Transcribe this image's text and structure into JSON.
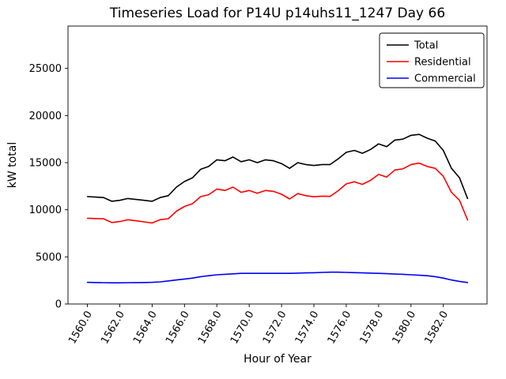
{
  "chart_data": {
    "type": "line",
    "title": "Timeseries Load for P14U p14uhs11_1247  Day 66",
    "xlabel": "Hour of Year",
    "ylabel": "kW total",
    "xlim": [
      1558.8,
      1584.7
    ],
    "ylim": [
      0,
      29500
    ],
    "grid": false,
    "legend": {
      "position": "upper right",
      "entries": [
        "Total",
        "Residential",
        "Commercial"
      ]
    },
    "xtick_values": [
      1560,
      1562,
      1564,
      1566,
      1568,
      1570,
      1572,
      1574,
      1576,
      1578,
      1580,
      1582
    ],
    "xtick_labels": [
      "1560.0",
      "1562.0",
      "1564.0",
      "1566.0",
      "1568.0",
      "1570.0",
      "1572.0",
      "1574.0",
      "1576.0",
      "1578.0",
      "1580.0",
      "1582.0"
    ],
    "ytick_values": [
      0,
      5000,
      10000,
      15000,
      20000,
      25000
    ],
    "ytick_labels": [
      "0",
      "5000",
      "10000",
      "15000",
      "20000",
      "25000"
    ],
    "x": [
      1560.0,
      1560.5,
      1561.0,
      1561.5,
      1562.0,
      1562.5,
      1563.0,
      1563.5,
      1564.0,
      1564.5,
      1565.0,
      1565.5,
      1566.0,
      1566.5,
      1567.0,
      1567.5,
      1568.0,
      1568.5,
      1569.0,
      1569.5,
      1570.0,
      1570.5,
      1571.0,
      1571.5,
      1572.0,
      1572.5,
      1573.0,
      1573.5,
      1574.0,
      1574.5,
      1575.0,
      1575.5,
      1576.0,
      1576.5,
      1577.0,
      1577.5,
      1578.0,
      1578.5,
      1579.0,
      1579.5,
      1580.0,
      1580.5,
      1581.0,
      1581.5,
      1582.0,
      1582.5,
      1583.0,
      1583.5
    ],
    "series": [
      {
        "name": "Total",
        "color": "#000000",
        "values": [
          11400,
          11350,
          11300,
          10900,
          11000,
          11200,
          11100,
          11000,
          10900,
          11300,
          11500,
          12400,
          13000,
          13400,
          14300,
          14600,
          15300,
          15200,
          15600,
          15100,
          15300,
          15000,
          15300,
          15200,
          14900,
          14400,
          15000,
          14800,
          14700,
          14800,
          14800,
          15400,
          16100,
          16300,
          16000,
          16400,
          17000,
          16700,
          17400,
          17500,
          17900,
          18000,
          17600,
          17300,
          16300,
          14400,
          13400,
          11200
        ]
      },
      {
        "name": "Residential",
        "color": "#ff0000",
        "values": [
          9100,
          9070,
          9040,
          8650,
          8750,
          8940,
          8830,
          8720,
          8600,
          8950,
          9050,
          9850,
          10350,
          10650,
          11400,
          11600,
          12200,
          12050,
          12400,
          11850,
          12050,
          11750,
          12050,
          11950,
          11650,
          11150,
          11720,
          11500,
          11380,
          11450,
          11420,
          12020,
          12750,
          12970,
          12700,
          13120,
          13750,
          13480,
          14220,
          14350,
          14800,
          14950,
          14600,
          14400,
          13550,
          11850,
          11000,
          8920
        ]
      },
      {
        "name": "Commercial",
        "color": "#0000ff",
        "values": [
          2300,
          2280,
          2260,
          2250,
          2250,
          2260,
          2270,
          2280,
          2300,
          2350,
          2450,
          2550,
          2650,
          2750,
          2900,
          3000,
          3100,
          3150,
          3200,
          3250,
          3250,
          3250,
          3250,
          3250,
          3250,
          3250,
          3280,
          3300,
          3320,
          3350,
          3380,
          3380,
          3350,
          3330,
          3300,
          3280,
          3250,
          3220,
          3180,
          3150,
          3100,
          3050,
          3000,
          2900,
          2750,
          2550,
          2400,
          2280
        ]
      }
    ]
  }
}
